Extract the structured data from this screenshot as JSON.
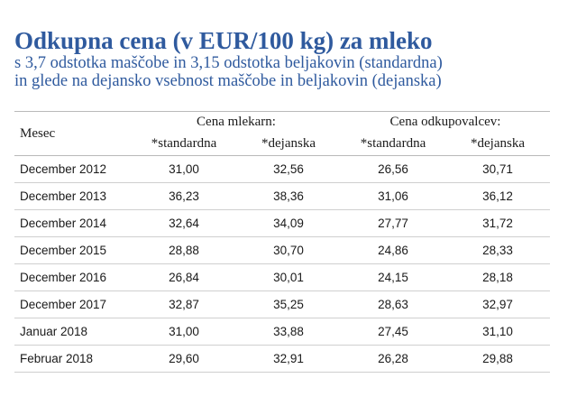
{
  "title": "Odkupna cena (v EUR/100 kg) za mleko",
  "subtitle_lines": [
    "s 3,7 odstotka maščobe in 3,15 odstotka beljakovin (standardna)",
    "in glede na dejansko vsebnost maščobe in beljakovin (dejanska)"
  ],
  "table": {
    "month_header": "Mesec",
    "groups": [
      "Cena mlekarn:",
      "Cena odkupovalcev:"
    ],
    "subheaders": [
      "*standardna",
      "*dejanska",
      "*standardna",
      "*dejanska"
    ],
    "rows": [
      {
        "month": "December 2012",
        "values": [
          "31,00",
          "32,56",
          "26,56",
          "30,71"
        ]
      },
      {
        "month": "December 2013",
        "values": [
          "36,23",
          "38,36",
          "31,06",
          "36,12"
        ]
      },
      {
        "month": "December 2014",
        "values": [
          "32,64",
          "34,09",
          "27,77",
          "31,72"
        ]
      },
      {
        "month": "December 2015",
        "values": [
          "28,88",
          "30,70",
          "24,86",
          "28,33"
        ]
      },
      {
        "month": "December 2016",
        "values": [
          "26,84",
          "30,01",
          "24,15",
          "28,18"
        ]
      },
      {
        "month": "December 2017",
        "values": [
          "32,87",
          "35,25",
          "28,63",
          "32,97"
        ]
      },
      {
        "month": "Januar 2018",
        "values": [
          "31,00",
          "33,88",
          "27,45",
          "31,10"
        ]
      },
      {
        "month": "Februar 2018",
        "values": [
          "29,60",
          "32,91",
          "26,28",
          "29,88"
        ]
      }
    ]
  }
}
